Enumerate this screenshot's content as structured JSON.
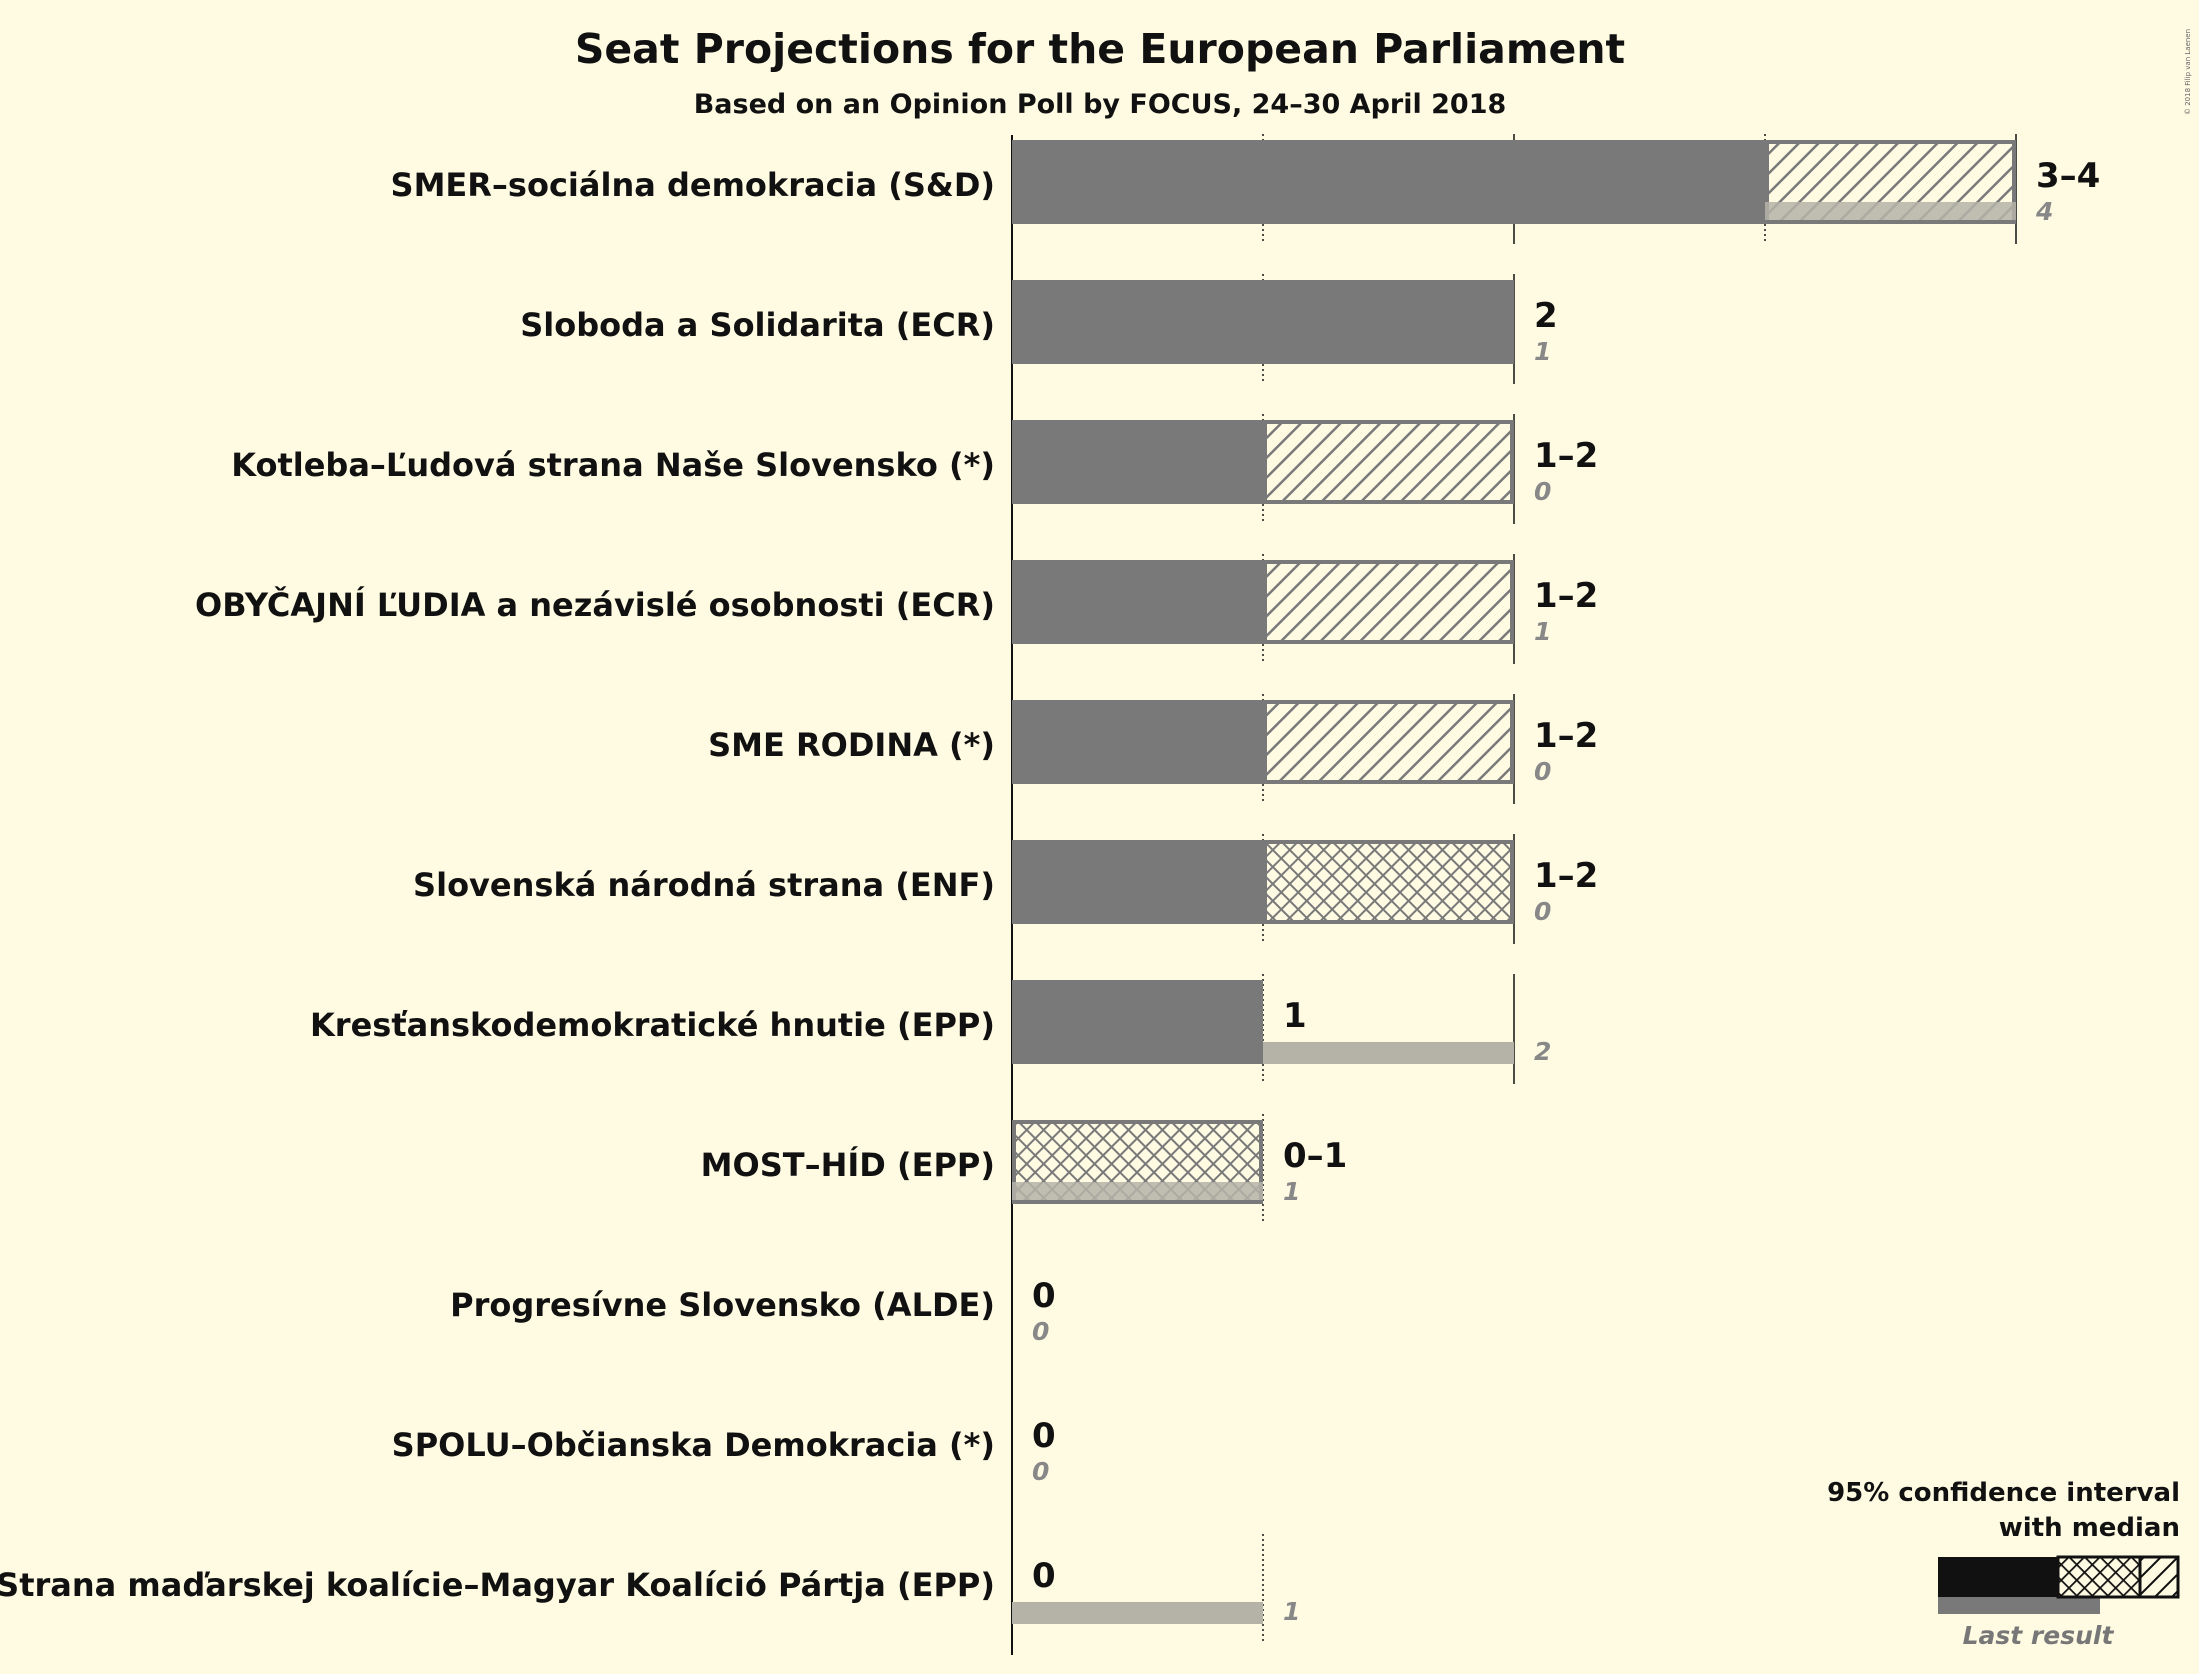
{
  "chart_data": {
    "type": "bar",
    "title": "Seat Projections for the European Parliament",
    "subtitle": "Based on an Opinion Poll by FOCUS, 24–30 April 2018",
    "copyright": "© 2018 Filip van Laenen",
    "xlim": [
      0,
      4
    ],
    "gridlines": [
      1,
      2,
      3,
      4
    ],
    "series": [
      {
        "name": "SMER–sociálna demokracia (S&D)",
        "range_label": "3–4",
        "median": 3,
        "ci_low": 3,
        "ci_high": 4,
        "last": 4,
        "last_label": "4",
        "pattern": "hatch",
        "has_last_band": true
      },
      {
        "name": "Sloboda a Solidarita (ECR)",
        "range_label": "2",
        "median": 2,
        "ci_low": 2,
        "ci_high": 2,
        "last": 1,
        "last_label": "1",
        "pattern": "none",
        "has_last_band": true
      },
      {
        "name": "Kotleba–Ľudová strana Naše Slovensko (*)",
        "range_label": "1–2",
        "median": 1,
        "ci_low": 1,
        "ci_high": 2,
        "last": 0,
        "last_label": "0",
        "pattern": "hatch",
        "has_last_band": false
      },
      {
        "name": "OBYČAJNÍ ĽUDIA a nezávislé osobnosti (ECR)",
        "range_label": "1–2",
        "median": 1,
        "ci_low": 1,
        "ci_high": 2,
        "last": 1,
        "last_label": "1",
        "pattern": "hatch",
        "has_last_band": true
      },
      {
        "name": "SME RODINA (*)",
        "range_label": "1–2",
        "median": 1,
        "ci_low": 1,
        "ci_high": 2,
        "last": 0,
        "last_label": "0",
        "pattern": "hatch",
        "has_last_band": false
      },
      {
        "name": "Slovenská národná strana (ENF)",
        "range_label": "1–2",
        "median": 1,
        "ci_low": 1,
        "ci_high": 2,
        "last": 0,
        "last_label": "0",
        "pattern": "cross",
        "has_last_band": false
      },
      {
        "name": "Kresťanskodemokratické hnutie (EPP)",
        "range_label": "1",
        "median": 1,
        "ci_low": 1,
        "ci_high": 1,
        "last": 2,
        "last_label": "2",
        "pattern": "none",
        "has_last_band": true
      },
      {
        "name": "MOST–HÍD (EPP)",
        "range_label": "0–1",
        "median": 0,
        "ci_low": 0,
        "ci_high": 1,
        "last": 1,
        "last_label": "1",
        "pattern": "cross",
        "has_last_band": true
      },
      {
        "name": "Progresívne Slovensko (ALDE)",
        "range_label": "0",
        "median": 0,
        "ci_low": 0,
        "ci_high": 0,
        "last": 0,
        "last_label": "0",
        "pattern": "none",
        "has_last_band": false
      },
      {
        "name": "SPOLU–Občianska Demokracia (*)",
        "range_label": "0",
        "median": 0,
        "ci_low": 0,
        "ci_high": 0,
        "last": 0,
        "last_label": "0",
        "pattern": "none",
        "has_last_band": false
      },
      {
        "name": "Strana maďarskej koalície–Magyar Koalíció Pártja (EPP)",
        "range_label": "0",
        "median": 0,
        "ci_low": 0,
        "ci_high": 0,
        "last": 1,
        "last_label": "1",
        "pattern": "none",
        "has_last_band": true
      }
    ],
    "legend": {
      "title_line1": "95% confidence interval",
      "title_line2": "with median",
      "last_result": "Last result",
      "placement": "bottom-right"
    },
    "colors": {
      "background": "#fffbe3",
      "bar": "#797979",
      "last_band": "#b5b3a8",
      "legend_bar": "#111111",
      "text": "#111111",
      "last_text": "#888888"
    }
  }
}
